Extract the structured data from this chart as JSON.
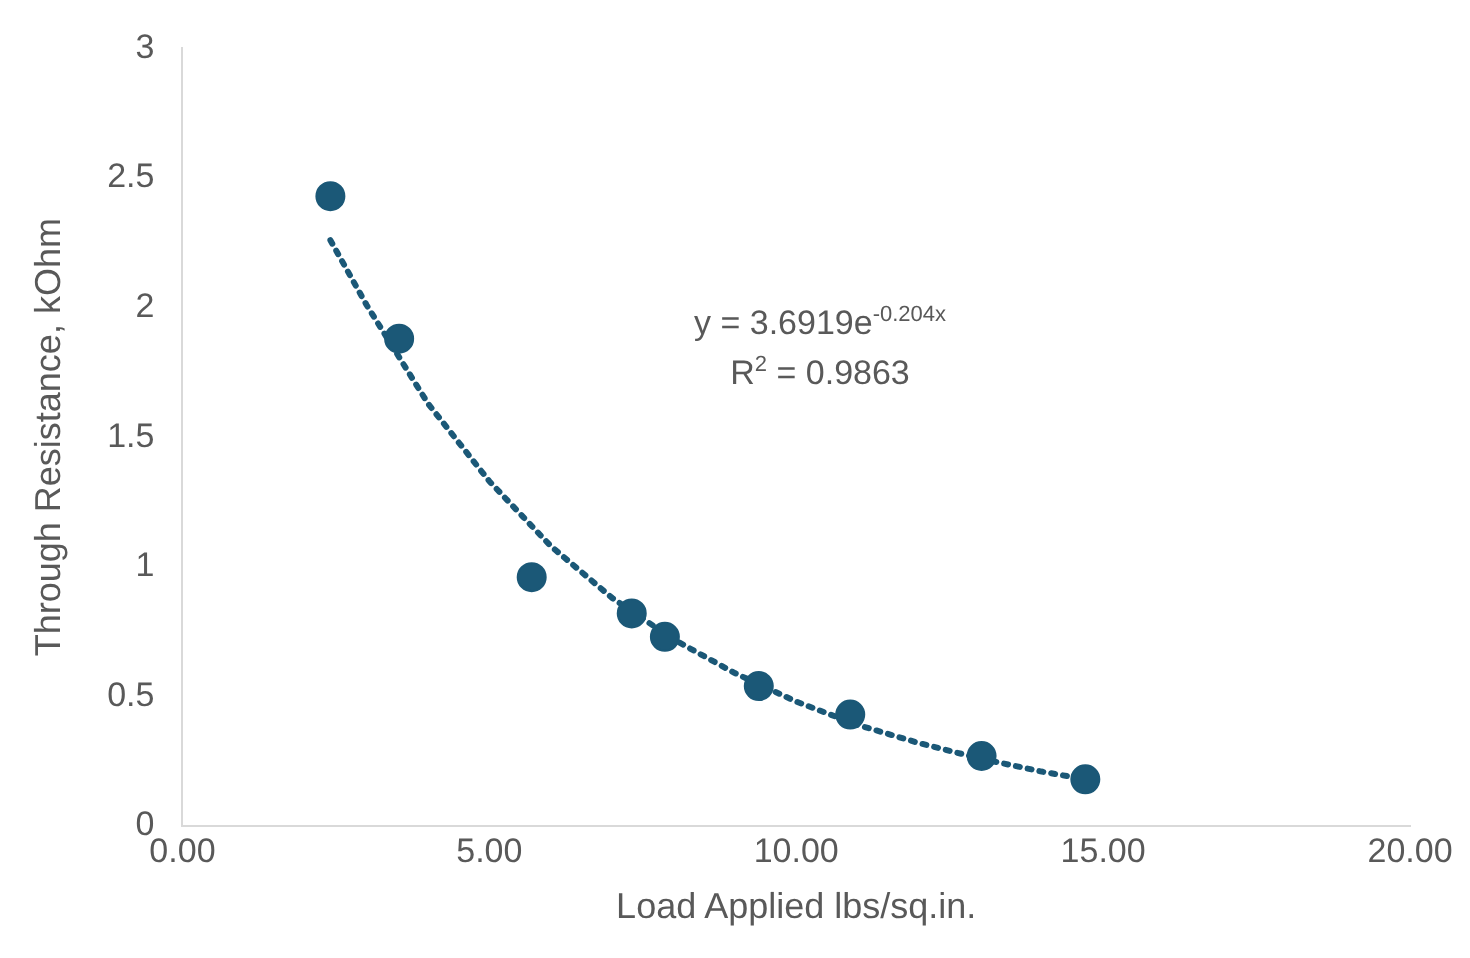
{
  "chart_data": {
    "type": "scatter",
    "xlabel": "Load Applied lbs/sq.in.",
    "ylabel": "Through Resistance, kOhm",
    "x": [
      2.41,
      3.53,
      5.69,
      7.32,
      7.86,
      9.39,
      10.88,
      13.02,
      14.71
    ],
    "series": [
      {
        "type": "scatter",
        "color": "#1b5877",
        "marker": "circle",
        "values": [
          2.43,
          1.88,
          0.96,
          0.82,
          0.73,
          0.54,
          0.43,
          0.27,
          0.18
        ]
      },
      {
        "type": "line",
        "color": "#1b5877",
        "marker": "none",
        "line_style": "dotted",
        "x": [
          2.41,
          3,
          4,
          5,
          6,
          7,
          8,
          9,
          10,
          11,
          12,
          13,
          14,
          14.71
        ],
        "values": [
          2.26,
          2.01,
          1.63,
          1.33,
          1.08,
          0.88,
          0.72,
          0.59,
          0.48,
          0.39,
          0.32,
          0.26,
          0.21,
          0.18
        ]
      }
    ],
    "xlim": [
      0,
      20
    ],
    "xticks": [
      {
        "value": 0,
        "label": "0.00"
      },
      {
        "value": 5,
        "label": "5.00"
      },
      {
        "value": 10,
        "label": "10.00"
      },
      {
        "value": 15,
        "label": "15.00"
      },
      {
        "value": 20,
        "label": "20.00"
      }
    ],
    "ylim": [
      0,
      3
    ],
    "yticks": [
      0,
      0.5,
      1,
      1.5,
      2,
      2.5,
      3
    ],
    "grid": false,
    "legend": false,
    "annotations": [
      "y = 3.6919e$^{-0.204x}$",
      "R$^{2}$ = 0.9863"
    ]
  }
}
